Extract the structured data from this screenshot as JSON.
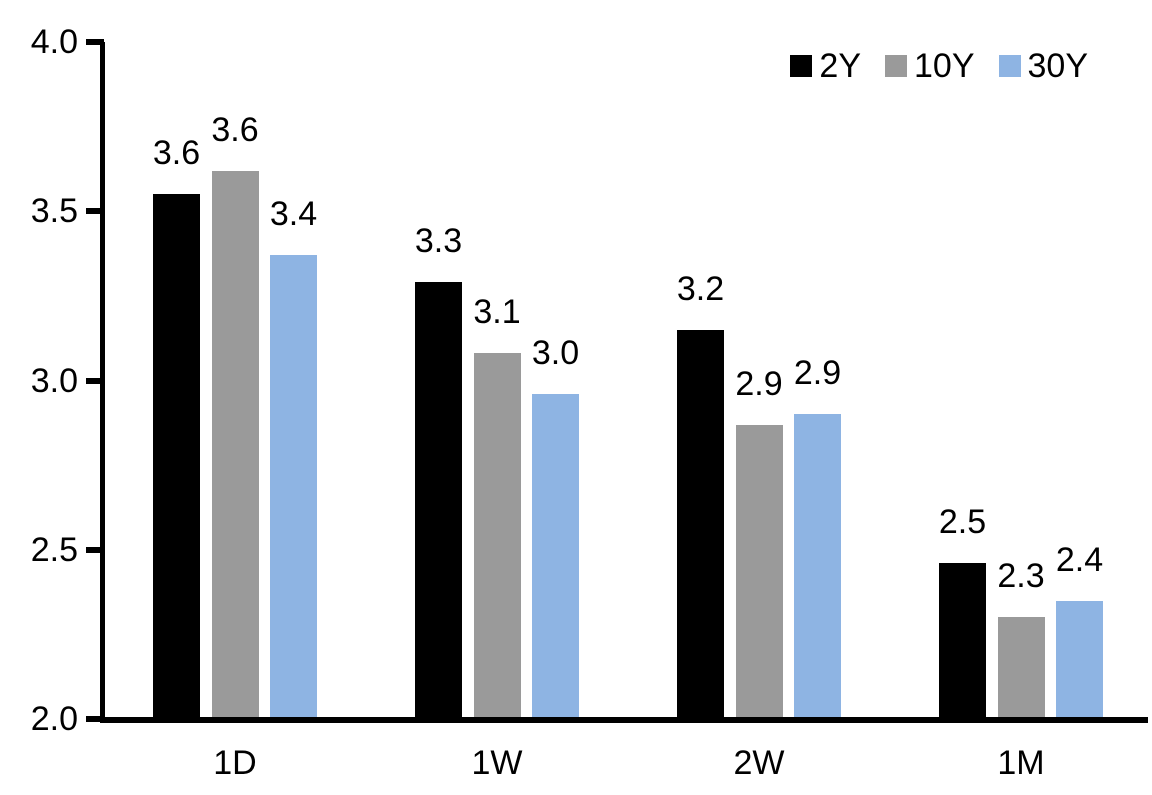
{
  "chart_data": {
    "type": "bar",
    "title": "",
    "xlabel": "",
    "ylabel": "",
    "categories": [
      "1D",
      "1W",
      "2W",
      "1M"
    ],
    "series": [
      {
        "name": "2Y",
        "color": "#000000",
        "values": [
          3.55,
          3.29,
          3.15,
          2.46
        ],
        "labels": [
          "3.6",
          "3.3",
          "3.2",
          "2.5"
        ]
      },
      {
        "name": "10Y",
        "color": "#9A9A9A",
        "values": [
          3.62,
          3.08,
          2.87,
          2.3
        ],
        "labels": [
          "3.6",
          "3.1",
          "2.9",
          "2.3"
        ]
      },
      {
        "name": "30Y",
        "color": "#8EB4E3",
        "values": [
          3.37,
          2.96,
          2.9,
          2.35
        ],
        "labels": [
          "3.4",
          "3.0",
          "2.9",
          "2.4"
        ]
      }
    ],
    "ylim": [
      2.0,
      4.0
    ],
    "yticks": [
      "2.0",
      "2.5",
      "3.0",
      "3.5",
      "4.0"
    ],
    "ytick_values": [
      2.0,
      2.5,
      3.0,
      3.5,
      4.0
    ],
    "grid": false,
    "legend_position": "top-right",
    "axis_color": "#000000",
    "text_color": "#000000"
  }
}
